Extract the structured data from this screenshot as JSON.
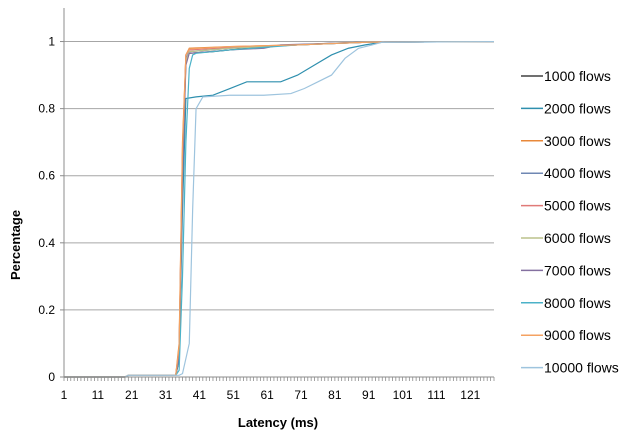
{
  "chart_data": {
    "type": "line",
    "title": "",
    "xlabel": "Latency (ms)",
    "ylabel": "Percentage",
    "xlim": [
      1,
      128
    ],
    "ylim": [
      0,
      1.1
    ],
    "xtick_labels": [
      "1",
      "11",
      "21",
      "31",
      "41",
      "51",
      "61",
      "71",
      "81",
      "91",
      "101",
      "111",
      "121"
    ],
    "ytick_labels": [
      "0",
      "0.2",
      "0.4",
      "0.6",
      "0.8",
      "1"
    ],
    "grid": "horizontal",
    "legend_position": "right",
    "series": [
      {
        "name": "1000 flows",
        "color": "#404040",
        "points": [
          [
            1,
            0
          ],
          [
            19,
            0
          ],
          [
            20,
            0.005
          ],
          [
            34,
            0.005
          ],
          [
            35,
            0.05
          ],
          [
            36,
            0.6
          ],
          [
            37,
            0.95
          ],
          [
            38,
            0.965
          ],
          [
            45,
            0.97
          ],
          [
            50,
            0.975
          ],
          [
            60,
            0.985
          ],
          [
            70,
            0.99
          ],
          [
            80,
            0.995
          ],
          [
            90,
            0.998
          ],
          [
            128,
            1
          ]
        ]
      },
      {
        "name": "2000 flows",
        "color": "#2e8fae",
        "points": [
          [
            1,
            0
          ],
          [
            19,
            0
          ],
          [
            20,
            0.005
          ],
          [
            34,
            0.005
          ],
          [
            35,
            0.05
          ],
          [
            36,
            0.5
          ],
          [
            37,
            0.83
          ],
          [
            40,
            0.835
          ],
          [
            45,
            0.84
          ],
          [
            50,
            0.86
          ],
          [
            55,
            0.88
          ],
          [
            65,
            0.88
          ],
          [
            70,
            0.9
          ],
          [
            75,
            0.93
          ],
          [
            80,
            0.96
          ],
          [
            85,
            0.98
          ],
          [
            90,
            0.99
          ],
          [
            95,
            0.998
          ],
          [
            128,
            1
          ]
        ]
      },
      {
        "name": "3000 flows",
        "color": "#e8883a",
        "points": [
          [
            1,
            0
          ],
          [
            19,
            0
          ],
          [
            20,
            0.005
          ],
          [
            34,
            0.005
          ],
          [
            35,
            0.1
          ],
          [
            36,
            0.7
          ],
          [
            37,
            0.96
          ],
          [
            38,
            0.98
          ],
          [
            50,
            0.985
          ],
          [
            70,
            0.99
          ],
          [
            90,
            0.998
          ],
          [
            128,
            1
          ]
        ]
      },
      {
        "name": "4000 flows",
        "color": "#6f87b3",
        "points": [
          [
            1,
            0
          ],
          [
            19,
            0
          ],
          [
            20,
            0.005
          ],
          [
            34,
            0.005
          ],
          [
            35,
            0.08
          ],
          [
            36,
            0.65
          ],
          [
            37,
            0.95
          ],
          [
            38,
            0.97
          ],
          [
            50,
            0.98
          ],
          [
            70,
            0.99
          ],
          [
            90,
            0.998
          ],
          [
            128,
            1
          ]
        ]
      },
      {
        "name": "5000 flows",
        "color": "#e07a78",
        "points": [
          [
            1,
            0
          ],
          [
            19,
            0
          ],
          [
            20,
            0.005
          ],
          [
            34,
            0.005
          ],
          [
            35,
            0.08
          ],
          [
            36,
            0.66
          ],
          [
            37,
            0.96
          ],
          [
            38,
            0.975
          ],
          [
            50,
            0.982
          ],
          [
            70,
            0.99
          ],
          [
            90,
            0.998
          ],
          [
            128,
            1
          ]
        ]
      },
      {
        "name": "6000 flows",
        "color": "#bcc28c",
        "points": [
          [
            1,
            0
          ],
          [
            19,
            0
          ],
          [
            20,
            0.005
          ],
          [
            34,
            0.005
          ],
          [
            35,
            0.07
          ],
          [
            36,
            0.62
          ],
          [
            37,
            0.94
          ],
          [
            38,
            0.97
          ],
          [
            50,
            0.98
          ],
          [
            70,
            0.99
          ],
          [
            90,
            0.998
          ],
          [
            128,
            1
          ]
        ]
      },
      {
        "name": "7000 flows",
        "color": "#8470a0",
        "points": [
          [
            1,
            0
          ],
          [
            19,
            0
          ],
          [
            20,
            0.005
          ],
          [
            34,
            0.005
          ],
          [
            35,
            0.06
          ],
          [
            36,
            0.6
          ],
          [
            37,
            0.93
          ],
          [
            38,
            0.965
          ],
          [
            50,
            0.975
          ],
          [
            60,
            0.98
          ],
          [
            65,
            0.99
          ],
          [
            90,
            0.998
          ],
          [
            128,
            1
          ]
        ]
      },
      {
        "name": "8000 flows",
        "color": "#4bb2c8",
        "points": [
          [
            1,
            0
          ],
          [
            19,
            0
          ],
          [
            20,
            0.005
          ],
          [
            34,
            0.005
          ],
          [
            35,
            0.02
          ],
          [
            36,
            0.3
          ],
          [
            37,
            0.7
          ],
          [
            38,
            0.92
          ],
          [
            39,
            0.96
          ],
          [
            40,
            0.965
          ],
          [
            50,
            0.975
          ],
          [
            70,
            0.99
          ],
          [
            90,
            0.998
          ],
          [
            128,
            1
          ]
        ]
      },
      {
        "name": "9000 flows",
        "color": "#f4a262",
        "points": [
          [
            1,
            0
          ],
          [
            19,
            0
          ],
          [
            20,
            0.005
          ],
          [
            34,
            0.005
          ],
          [
            35,
            0.09
          ],
          [
            36,
            0.68
          ],
          [
            37,
            0.96
          ],
          [
            38,
            0.978
          ],
          [
            50,
            0.985
          ],
          [
            70,
            0.99
          ],
          [
            90,
            0.998
          ],
          [
            128,
            1
          ]
        ]
      },
      {
        "name": "10000 flows",
        "color": "#9ec4de",
        "points": [
          [
            1,
            0
          ],
          [
            19,
            0
          ],
          [
            20,
            0.005
          ],
          [
            35,
            0.005
          ],
          [
            36,
            0.01
          ],
          [
            38,
            0.1
          ],
          [
            39,
            0.5
          ],
          [
            40,
            0.8
          ],
          [
            42,
            0.835
          ],
          [
            50,
            0.84
          ],
          [
            60,
            0.84
          ],
          [
            68,
            0.845
          ],
          [
            72,
            0.86
          ],
          [
            76,
            0.88
          ],
          [
            80,
            0.9
          ],
          [
            84,
            0.95
          ],
          [
            88,
            0.98
          ],
          [
            92,
            0.99
          ],
          [
            95,
            0.998
          ],
          [
            128,
            1
          ]
        ]
      }
    ]
  }
}
